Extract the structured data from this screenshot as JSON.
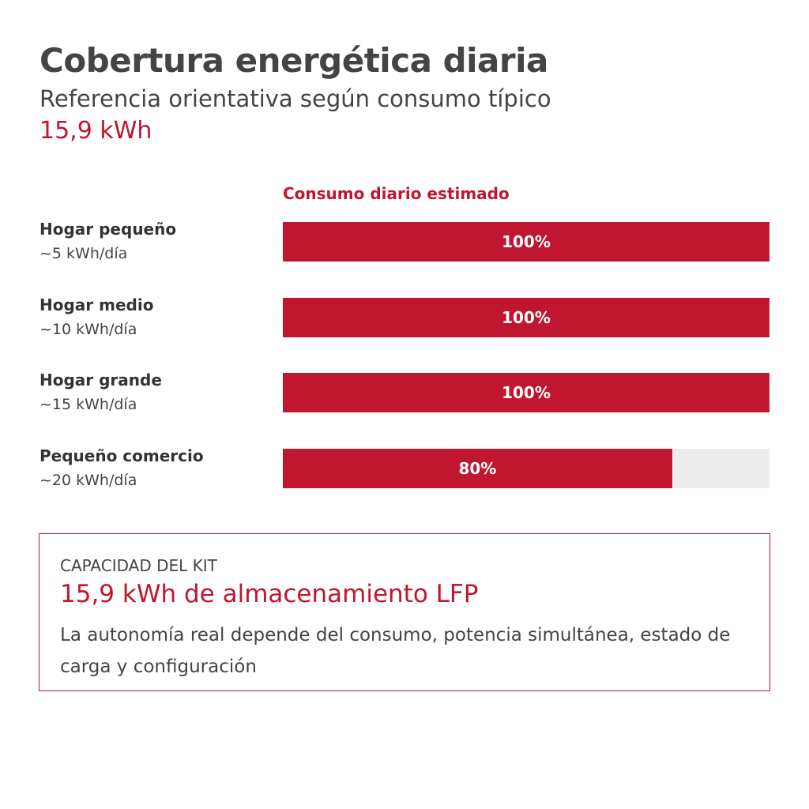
{
  "chart_data": {
    "type": "bar",
    "orientation": "horizontal",
    "title": "Cobertura energética diaria",
    "subtitle": "Referencia orientativa según consumo típico",
    "highlight": "15,9 kWh",
    "value_axis_title": "Consumo diario estimado",
    "categories": [
      "Hogar pequeño",
      "Hogar medio",
      "Hogar grande",
      "Pequeño comercio"
    ],
    "category_notes": [
      "~5 kWh/día",
      "~10 kWh/día",
      "~15 kWh/día",
      "~20 kWh/día"
    ],
    "values": [
      100,
      100,
      100,
      80
    ],
    "value_labels": [
      "100%",
      "100%",
      "100%",
      "80%"
    ],
    "xlim": [
      0,
      100
    ],
    "color": "#c0162f",
    "track_color": "#ececec"
  },
  "info_box": {
    "label": "CAPACIDAD DEL KIT",
    "headline": "15,9 kWh de almacenamiento LFP",
    "body": "La autonomía real depende del consumo, potencia simultánea, estado de carga y configuración"
  }
}
